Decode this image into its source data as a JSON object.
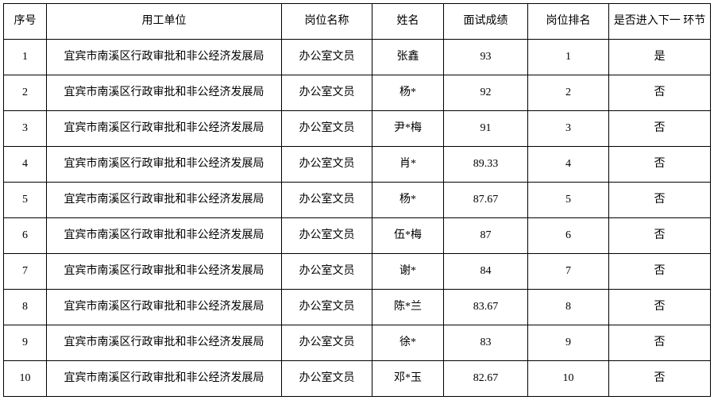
{
  "table": {
    "columns": [
      {
        "key": "seq",
        "label": "序号"
      },
      {
        "key": "unit",
        "label": "用工单位"
      },
      {
        "key": "pos",
        "label": "岗位名称"
      },
      {
        "key": "name",
        "label": "姓名"
      },
      {
        "key": "score",
        "label": "面试成绩"
      },
      {
        "key": "rank",
        "label": "岗位排名"
      },
      {
        "key": "next",
        "label": "是否进入下一\n环节"
      }
    ],
    "rows": [
      {
        "seq": "1",
        "unit": "宜宾市南溪区行政审批和非公经济发展局",
        "pos": "办公室文员",
        "name": "张鑫",
        "score": "93",
        "rank": "1",
        "next": "是"
      },
      {
        "seq": "2",
        "unit": "宜宾市南溪区行政审批和非公经济发展局",
        "pos": "办公室文员",
        "name": "杨*",
        "score": "92",
        "rank": "2",
        "next": "否"
      },
      {
        "seq": "3",
        "unit": "宜宾市南溪区行政审批和非公经济发展局",
        "pos": "办公室文员",
        "name": "尹*梅",
        "score": "91",
        "rank": "3",
        "next": "否"
      },
      {
        "seq": "4",
        "unit": "宜宾市南溪区行政审批和非公经济发展局",
        "pos": "办公室文员",
        "name": "肖*",
        "score": "89.33",
        "rank": "4",
        "next": "否"
      },
      {
        "seq": "5",
        "unit": "宜宾市南溪区行政审批和非公经济发展局",
        "pos": "办公室文员",
        "name": "杨*",
        "score": "87.67",
        "rank": "5",
        "next": "否"
      },
      {
        "seq": "6",
        "unit": "宜宾市南溪区行政审批和非公经济发展局",
        "pos": "办公室文员",
        "name": "伍*梅",
        "score": "87",
        "rank": "6",
        "next": "否"
      },
      {
        "seq": "7",
        "unit": "宜宾市南溪区行政审批和非公经济发展局",
        "pos": "办公室文员",
        "name": "谢*",
        "score": "84",
        "rank": "7",
        "next": "否"
      },
      {
        "seq": "8",
        "unit": "宜宾市南溪区行政审批和非公经济发展局",
        "pos": "办公室文员",
        "name": "陈*兰",
        "score": "83.67",
        "rank": "8",
        "next": "否"
      },
      {
        "seq": "9",
        "unit": "宜宾市南溪区行政审批和非公经济发展局",
        "pos": "办公室文员",
        "name": "徐*",
        "score": "83",
        "rank": "9",
        "next": "否"
      },
      {
        "seq": "10",
        "unit": "宜宾市南溪区行政审批和非公经济发展局",
        "pos": "办公室文员",
        "name": "邓*玉",
        "score": "82.67",
        "rank": "10",
        "next": "否"
      }
    ]
  }
}
